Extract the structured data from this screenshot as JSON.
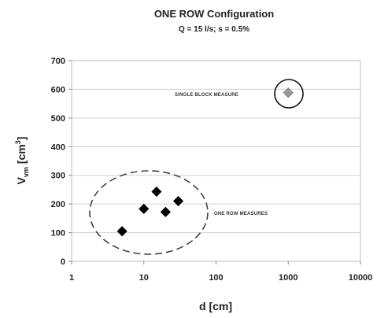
{
  "chart_data": {
    "type": "scatter",
    "title": "ONE ROW Configuration",
    "subtitle": "Q = 15 l/s; s = 0.5%",
    "xlabel": "d [cm]",
    "ylabel_main": "V",
    "ylabel_sub": "vm",
    "ylabel_unit_open": " [cm",
    "ylabel_sup": "3",
    "ylabel_unit_close": "]",
    "xscale": "log",
    "xlim": [
      1,
      10000
    ],
    "ylim": [
      0,
      700
    ],
    "x_ticks": [
      "1",
      "10",
      "100",
      "1000",
      "10000"
    ],
    "y_ticks": [
      "0",
      "100",
      "200",
      "300",
      "400",
      "500",
      "600",
      "700"
    ],
    "grid": "horizontal",
    "series": [
      {
        "marker": "diamond",
        "color": "#000000",
        "points": [
          {
            "x": 5,
            "y": 105
          },
          {
            "x": 10,
            "y": 183
          },
          {
            "x": 15,
            "y": 243
          },
          {
            "x": 20,
            "y": 172
          },
          {
            "x": 30,
            "y": 210
          }
        ]
      },
      {
        "marker": "diamond",
        "color": "#999999",
        "points": [
          {
            "x": 1000,
            "y": 588
          }
        ]
      }
    ],
    "annotations": [
      {
        "text": "SINGLE BLOCK MEASURE"
      },
      {
        "text": "ONE ROW MEASURES"
      }
    ]
  }
}
